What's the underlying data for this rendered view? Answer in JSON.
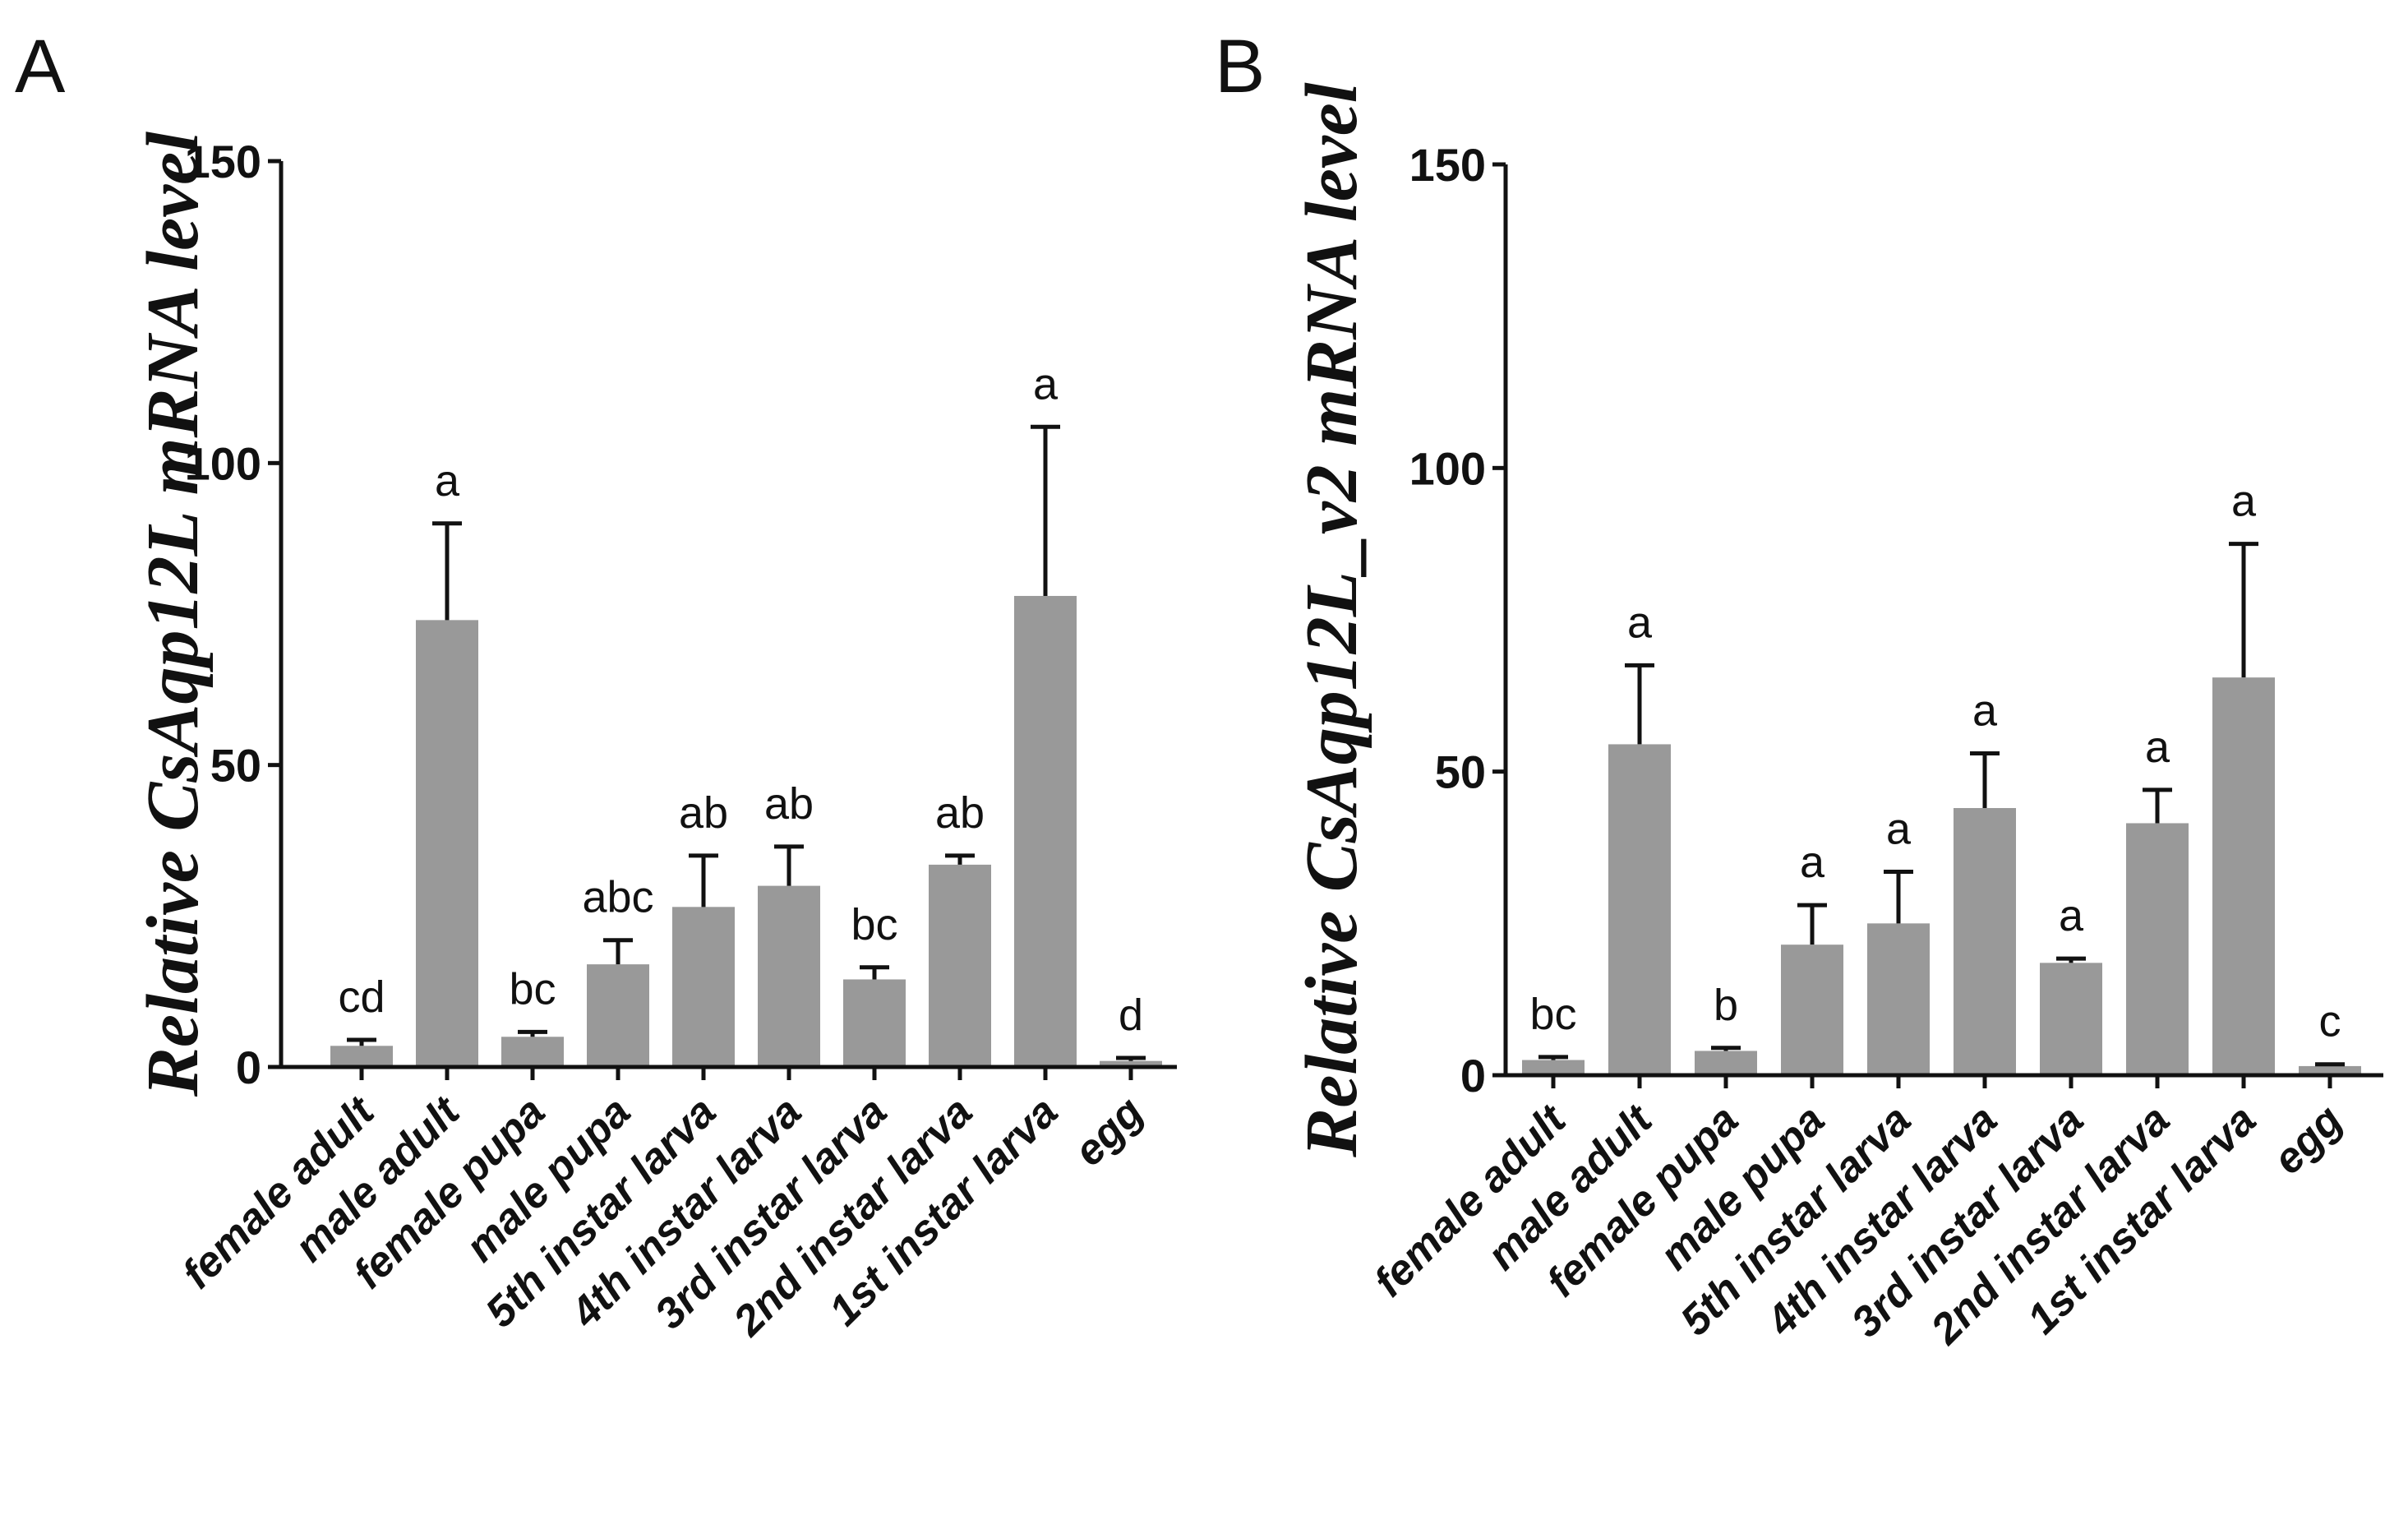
{
  "chart_data": [
    {
      "type": "bar",
      "panel_label": "A",
      "ylabel": {
        "prefix": "Relative ",
        "gene": "CsAqp12L",
        "suffix": " mRNA level"
      },
      "ylim": [
        0,
        150
      ],
      "yticks": [
        0,
        50,
        100,
        150
      ],
      "bar_color": "#999999",
      "categories": [
        "female adult",
        "male adult",
        "female pupa",
        "male pupa",
        "5th instar larva",
        "4th instar larva",
        "3rd instar larva",
        "2nd instar larva",
        "1st instar larva",
        "egg"
      ],
      "values": [
        3.5,
        74,
        5,
        17,
        26.5,
        30,
        14.5,
        33.5,
        78,
        1
      ],
      "errors": [
        1,
        16,
        0.8,
        4,
        8.5,
        6.5,
        2,
        1.5,
        28,
        0.5
      ],
      "significance": [
        "cd",
        "a",
        "bc",
        "abc",
        "ab",
        "ab",
        "bc",
        "ab",
        "a",
        "d"
      ]
    },
    {
      "type": "bar",
      "panel_label": "B",
      "ylabel": {
        "prefix": "Relative ",
        "gene": "CsAqp12L_v2",
        "suffix": " mRNA level"
      },
      "ylim": [
        0,
        150
      ],
      "yticks": [
        0,
        50,
        100,
        150
      ],
      "bar_color": "#999999",
      "categories": [
        "female adult",
        "male adult",
        "female pupa",
        "male pupa",
        "5th instar larva",
        "4th instar larva",
        "3rd instar larva",
        "2nd instar larva",
        "1st instar larva",
        "egg"
      ],
      "values": [
        2.5,
        54.5,
        4,
        21.5,
        25,
        44,
        18.5,
        41.5,
        65.5,
        1.5
      ],
      "errors": [
        0.5,
        13,
        0.5,
        6.5,
        8.5,
        9,
        0.7,
        5.5,
        22,
        0.3
      ],
      "significance": [
        "bc",
        "a",
        "b",
        "a",
        "a",
        "a",
        "a",
        "a",
        "a",
        "c"
      ]
    }
  ]
}
